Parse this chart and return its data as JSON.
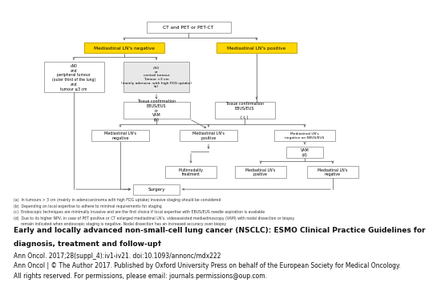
{
  "yellow_color": "#FFD700",
  "bg_color": "#FFFFFF",
  "box_edge": "#999999",
  "arrow_color": "#555555",
  "footnotes": [
    "(a)  In tumours > 3 cm (mainly in adenocarcinoma with high FDG uptake) invasive staging should be considered",
    "(b)  Depending on local expertise to adhere to minimal requirements for staging",
    "(c)  Endoscopic techniques are minimally invasive and are the first choice if local expertise with EBUS/EUS needle aspiration is available",
    "(d)  Due to its higher NPV, in case of PET positive or CT enlarged mediastinal LN's, videoassisted mediastinoscopy (VAM) with nodal dissection or biopsy",
    "      remain indicated when endoscopic staging is negative. Nodal dissection has an increased accuracy over biopsy"
  ],
  "caption_lines": [
    "Early and locally advanced non-small-cell lung cancer (NSCLC): ESMO Clinical Practice Guidelines for",
    "diagnosis, treatment and follow-up†",
    "Ann Oncol. 2017;28(suppl_4):iv1-iv21. doi:10.1093/annonc/mdx222",
    "Ann Oncol | © The Author 2017. Published by Oxford University Press on behalf of the European Society for Medical Oncology.",
    "All rights reserved. For permissions, please email: journals.permissions@oup.com."
  ],
  "cap_fontsizes": [
    6.5,
    6.5,
    5.5,
    5.5,
    5.5
  ],
  "cap_weights": [
    "bold",
    "bold",
    "normal",
    "normal",
    "normal"
  ]
}
